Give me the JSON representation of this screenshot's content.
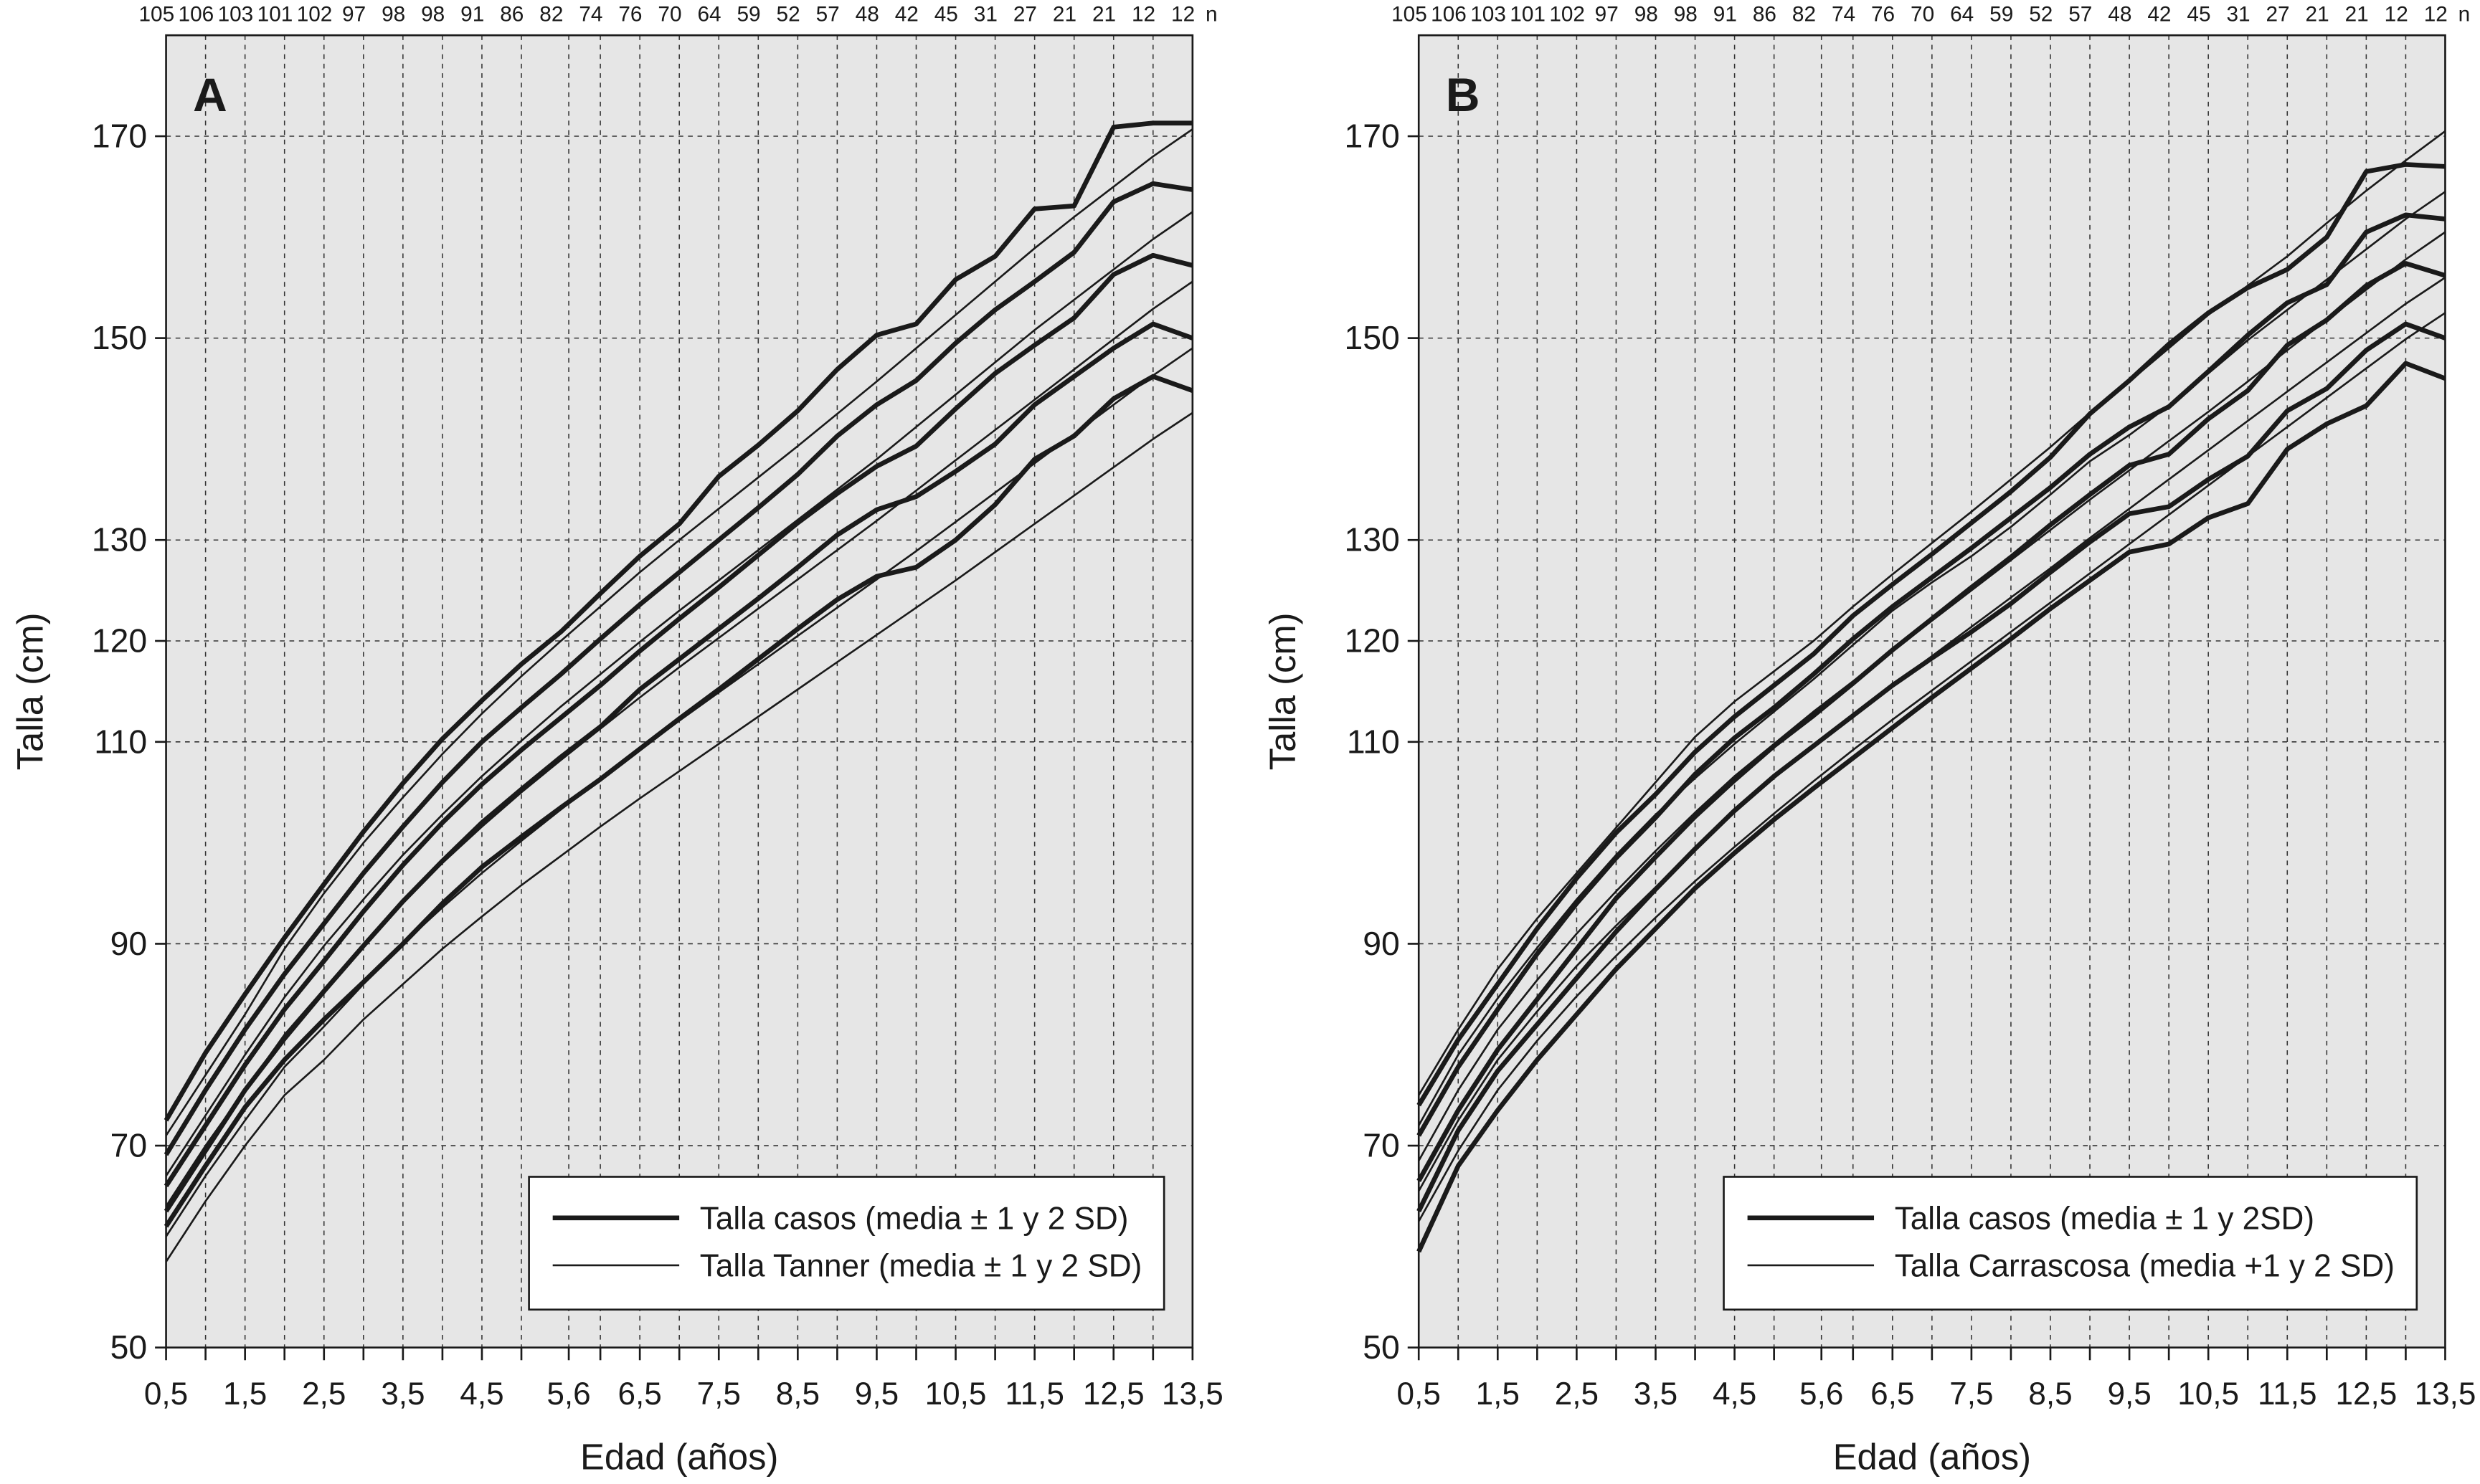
{
  "chart_data": [
    {
      "type": "line",
      "panel_label": "A",
      "x_label": "Edad (años)",
      "y_label": "Talla (cm)",
      "xlim": [
        0.5,
        13.5
      ],
      "ylim": [
        50,
        180
      ],
      "xticks": [
        {
          "value": 0.5,
          "label": "0,5"
        },
        {
          "value": 1.5,
          "label": "1,5"
        },
        {
          "value": 2.5,
          "label": "2,5"
        },
        {
          "value": 3.5,
          "label": "3,5"
        },
        {
          "value": 4.5,
          "label": "4,5"
        },
        {
          "value": 5.6,
          "label": "5,6"
        },
        {
          "value": 6.5,
          "label": "6,5"
        },
        {
          "value": 7.5,
          "label": "7,5"
        },
        {
          "value": 8.5,
          "label": "8,5"
        },
        {
          "value": 9.5,
          "label": "9,5"
        },
        {
          "value": 10.5,
          "label": "10,5"
        },
        {
          "value": 11.5,
          "label": "11,5"
        },
        {
          "value": 12.5,
          "label": "12,5"
        },
        {
          "value": 13.5,
          "label": "13,5"
        }
      ],
      "xminorticks": [
        1,
        2,
        3,
        4,
        5,
        6,
        7,
        8,
        9,
        10,
        11,
        12,
        13
      ],
      "yticks": [
        50,
        70,
        90,
        110,
        120,
        130,
        150,
        170
      ],
      "grid": true,
      "legend": "lower right",
      "top_counts": [
        105,
        106,
        103,
        101,
        102,
        97,
        98,
        98,
        91,
        86,
        82,
        74,
        76,
        70,
        64,
        59,
        52,
        57,
        48,
        42,
        45,
        31,
        27,
        21,
        21,
        12,
        12
      ],
      "top_counts_label": "n",
      "x": [
        0.5,
        1,
        1.5,
        2,
        2.5,
        3,
        3.5,
        4,
        4.5,
        5,
        5.5,
        6,
        6.5,
        7,
        7.5,
        8,
        8.5,
        9,
        9.5,
        10,
        10.5,
        11,
        11.5,
        12,
        12.5,
        13,
        13.5
      ],
      "series": [
        {
          "name": "Talla casos (media ± 1 y 2 SD)",
          "color": "#1a1a1a",
          "width": 3,
          "lines": [
            [
              72.5,
              79.2,
              85,
              90.6,
              95.9,
              101.1,
              105.9,
              110.3,
              114.1,
              117.7,
              120.9,
              124.7,
              128.4,
              131.6,
              136.3,
              139.4,
              142.8,
              146.9,
              150.3,
              151.4,
              155.8,
              158.1,
              162.8,
              163.1,
              170.9,
              171.3,
              171.3
            ],
            [
              69.1,
              75.5,
              81.5,
              87,
              92,
              97,
              101.6,
              106,
              110,
              113.4,
              116.7,
              120.2,
              123.6,
              126.8,
              130,
              133.2,
              136.5,
              140.3,
              143.4,
              145.8,
              149.5,
              152.8,
              155.6,
              158.5,
              163.5,
              165.3,
              164.7
            ],
            [
              66,
              72,
              78,
              83.5,
              88.3,
              93.2,
              97.8,
              102,
              105.8,
              109.2,
              112.4,
              115.6,
              119,
              122.2,
              125.3,
              128.5,
              131.7,
              134.6,
              137.3,
              139.3,
              143,
              146.5,
              149.3,
              152,
              156.3,
              158.2,
              157.2
            ],
            [
              63.5,
              69.5,
              75.5,
              80.6,
              85.3,
              89.8,
              94.2,
              98.2,
              102,
              105.3,
              108.5,
              111.5,
              115.2,
              118.2,
              121.2,
              124.2,
              127.3,
              130.5,
              133,
              134.3,
              136.8,
              139.5,
              143.4,
              146.2,
              149,
              151.4,
              150
            ],
            [
              62,
              68,
              73.8,
              78.5,
              82.5,
              86.2,
              90,
              94,
              97.6,
              100.6,
              103.5,
              106.3,
              109.3,
              112.3,
              115.2,
              118.2,
              121.2,
              124.1,
              126.4,
              127.3,
              130,
              133.5,
              138,
              140.3,
              144,
              146.2,
              144.8
            ]
          ]
        },
        {
          "name": "Talla Tanner (media ± 1 y 2 SD)",
          "color": "#1a1a1a",
          "width": 1.2,
          "lines": [
            [
              71,
              77,
              83,
              89.5,
              95,
              100,
              104.5,
              108.8,
              112.8,
              116.5,
              120,
              123.4,
              126.8,
              130,
              133.1,
              136.2,
              139.3,
              142.5,
              145.7,
              149,
              152.3,
              155.6,
              158.9,
              162,
              165,
              168,
              170.7
            ],
            [
              67,
              73,
              79,
              84.7,
              89.8,
              94.4,
              98.8,
              102.8,
              106.6,
              110.1,
              113.5,
              116.7,
              119.9,
              123,
              126,
              129,
              132,
              135,
              138,
              141.2,
              144.4,
              147.6,
              150.8,
              153.8,
              156.8,
              159.8,
              162.5
            ],
            [
              64,
              70,
              75.5,
              81,
              85.5,
              90,
              94.2,
              98,
              101.6,
              105,
              108.2,
              111.3,
              114.4,
              117.4,
              120.3,
              123.2,
              126.1,
              129,
              131.9,
              134.9,
              137.9,
              140.9,
              143.9,
              146.9,
              149.9,
              152.9,
              155.6
            ],
            [
              61,
              67,
              72.5,
              77.8,
              81.8,
              86,
              90,
              93.6,
              97,
              100.2,
              103.3,
              106.3,
              109.2,
              112.1,
              114.9,
              117.7,
              120.5,
              123.3,
              126.1,
              128.9,
              131.8,
              134.7,
              137.6,
              140.5,
              143.4,
              146.3,
              149
            ],
            [
              58.5,
              64.5,
              70,
              75,
              78.5,
              82.5,
              86,
              89.5,
              92.7,
              95.8,
              98.7,
              101.6,
              104.4,
              107.1,
              109.8,
              112.5,
              115.2,
              117.9,
              120.6,
              123.3,
              126,
              128.8,
              131.6,
              134.4,
              137.2,
              140,
              142.6
            ]
          ]
        }
      ]
    },
    {
      "type": "line",
      "panel_label": "B",
      "x_label": "Edad (años)",
      "y_label": "Talla (cm)",
      "xlim": [
        0.5,
        13.5
      ],
      "ylim": [
        50,
        180
      ],
      "xticks": [
        {
          "value": 0.5,
          "label": "0,5"
        },
        {
          "value": 1.5,
          "label": "1,5"
        },
        {
          "value": 2.5,
          "label": "2,5"
        },
        {
          "value": 3.5,
          "label": "3,5"
        },
        {
          "value": 4.5,
          "label": "4,5"
        },
        {
          "value": 5.6,
          "label": "5,6"
        },
        {
          "value": 6.5,
          "label": "6,5"
        },
        {
          "value": 7.5,
          "label": "7,5"
        },
        {
          "value": 8.5,
          "label": "8,5"
        },
        {
          "value": 9.5,
          "label": "9,5"
        },
        {
          "value": 10.5,
          "label": "10,5"
        },
        {
          "value": 11.5,
          "label": "11,5"
        },
        {
          "value": 12.5,
          "label": "12,5"
        },
        {
          "value": 13.5,
          "label": "13,5"
        }
      ],
      "xminorticks": [
        1,
        2,
        3,
        4,
        5,
        6,
        7,
        8,
        9,
        10,
        11,
        12,
        13
      ],
      "yticks": [
        50,
        70,
        90,
        110,
        120,
        130,
        150,
        170
      ],
      "grid": true,
      "legend": "lower right",
      "top_counts": [
        105,
        106,
        103,
        101,
        102,
        97,
        98,
        98,
        91,
        86,
        82,
        74,
        76,
        70,
        64,
        59,
        52,
        57,
        48,
        42,
        45,
        31,
        27,
        21,
        21,
        12,
        12
      ],
      "top_counts_label": "n",
      "x": [
        0.5,
        1,
        1.5,
        2,
        2.5,
        3,
        3.5,
        4,
        4.5,
        5,
        5.5,
        6,
        6.5,
        7,
        7.5,
        8,
        8.5,
        9,
        9.5,
        10,
        10.5,
        11,
        11.5,
        12,
        12.5,
        13,
        13.5
      ],
      "series": [
        {
          "name": "Talla casos (media ± 1 y 2SD)",
          "color": "#1a1a1a",
          "width": 3,
          "lines": [
            [
              74,
              80.5,
              86,
              91.5,
              96.5,
              101,
              104.8,
              109,
              112.5,
              115.6,
              118.7,
              122.5,
              125.6,
              128.6,
              131.7,
              134.8,
              138.2,
              142.5,
              145.8,
              149.4,
              152.5,
              155,
              156.8,
              160,
              166.5,
              167.2,
              167
            ],
            [
              71,
              77.8,
              83.5,
              89,
              94,
              98.5,
              102.5,
              106.8,
              110.4,
              113.4,
              116.7,
              120.2,
              123.4,
              126.3,
              129.2,
              132.2,
              135.2,
              138.5,
              141.2,
              143.2,
              146.7,
              150.3,
              153.5,
              155.3,
              160.5,
              162.2,
              161.8
            ],
            [
              66.5,
              73.5,
              79.5,
              84.5,
              89.5,
              94.5,
              98.6,
              102.6,
              106.2,
              109.6,
              112.6,
              115.8,
              119.1,
              122.2,
              125.3,
              128.3,
              131.5,
              134.5,
              137.4,
              138.5,
              142,
              144.8,
              149.3,
              151.8,
              155.2,
              157.4,
              156.2
            ],
            [
              63.5,
              71.5,
              77.4,
              82,
              86.6,
              91.2,
              95.4,
              99.4,
              103.2,
              106.6,
              109.6,
              112.6,
              115.6,
              118.3,
              120.9,
              123.7,
              126.8,
              129.8,
              132.6,
              133.3,
              136,
              138.3,
              142.8,
              145,
              148.8,
              151.4,
              150
            ],
            [
              59.5,
              68,
              73.5,
              78.5,
              83,
              87.5,
              91.5,
              95.5,
              99,
              102.3,
              105.4,
              108.4,
              111.4,
              114.4,
              117.3,
              120.2,
              123.2,
              126,
              128.8,
              129.6,
              132.2,
              133.6,
              139,
              141.5,
              143.3,
              147.5,
              146
            ]
          ]
        },
        {
          "name": "Talla Carrascosa (media +1 y 2 SD)",
          "color": "#1a1a1a",
          "width": 1.2,
          "lines": [
            [
              75,
              81.5,
              87.5,
              92.5,
              97,
              101.5,
              106,
              110.5,
              114,
              117,
              120,
              123.4,
              126.6,
              129.7,
              132.8,
              136,
              139.2,
              142.6,
              145.7,
              149,
              152.3,
              155.2,
              158.1,
              161.4,
              164.6,
              167.6,
              170.5
            ],
            [
              72,
              79,
              84.6,
              89.6,
              94.4,
              98.8,
              102.8,
              106.4,
              109.8,
              113,
              116.2,
              119.6,
              123,
              125.8,
              128.4,
              131.3,
              134.5,
              137.8,
              140.4,
              143.3,
              146.5,
              149.8,
              152.8,
              155.8,
              158.8,
              161.8,
              164.5
            ],
            [
              68.5,
              75.5,
              81.5,
              86.4,
              91,
              95.2,
              99.2,
              103,
              106.6,
              109.8,
              113,
              116,
              119,
              122,
              125,
              128,
              131,
              134,
              136.9,
              139.8,
              142.7,
              145.7,
              148.8,
              151.8,
              154.8,
              157.8,
              160.5
            ],
            [
              65.5,
              72.5,
              78.5,
              83.3,
              87.8,
              91.8,
              95.6,
              99.4,
              103,
              106.4,
              109.6,
              112.6,
              115.6,
              118.5,
              121.4,
              124.3,
              127.2,
              130.2,
              133.1,
              136,
              138.9,
              141.8,
              144.7,
              147.6,
              150.5,
              153.4,
              156
            ],
            [
              62.5,
              69.5,
              75.5,
              80.4,
              84.8,
              88.8,
              92.6,
              96.2,
              99.6,
              102.9,
              106.1,
              109.2,
              112.2,
              115.1,
              118,
              120.9,
              123.8,
              126.7,
              129.6,
              132.5,
              135.4,
              138.3,
              141.2,
              144.1,
              147,
              149.9,
              152.5
            ]
          ]
        }
      ]
    }
  ]
}
